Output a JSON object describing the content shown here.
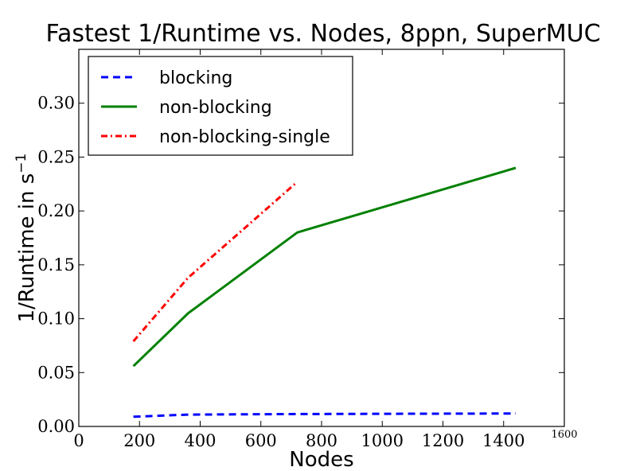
{
  "chart_data": {
    "type": "line",
    "title": "Fastest 1/Runtime vs. Nodes, 8ppn, SuperMUC",
    "xlabel": "Nodes",
    "ylabel_main": "1/Runtime in s",
    "ylabel_sup": "−1",
    "xlim": [
      0,
      1600
    ],
    "ylim": [
      0,
      0.35
    ],
    "xticks": [
      0,
      200,
      400,
      600,
      800,
      1000,
      1200,
      1400
    ],
    "xtick_labels": [
      "0",
      "200",
      "400",
      "600",
      "800",
      "1000",
      "1200",
      "1400"
    ],
    "xtick_extra_label": "1600",
    "yticks": [
      0,
      0.05,
      0.1,
      0.15,
      0.2,
      0.25,
      0.3
    ],
    "ytick_labels": [
      "0.00",
      "0.05",
      "0.10",
      "0.15",
      "0.20",
      "0.25",
      "0.30"
    ],
    "legend_position": "top-left",
    "series": [
      {
        "name": "blocking",
        "style": "dashed",
        "color": "#0000ff",
        "x": [
          180,
          360,
          720,
          1440
        ],
        "y": [
          0.009,
          0.011,
          0.0115,
          0.012
        ]
      },
      {
        "name": "non-blocking",
        "style": "solid",
        "color": "#008000",
        "x": [
          180,
          360,
          720,
          1440
        ],
        "y": [
          0.056,
          0.105,
          0.18,
          0.24
        ]
      },
      {
        "name": "non-blocking-single",
        "style": "dashdot",
        "color": "#ff0000",
        "x": [
          180,
          360,
          720
        ],
        "y": [
          0.079,
          0.138,
          0.227
        ]
      }
    ]
  }
}
